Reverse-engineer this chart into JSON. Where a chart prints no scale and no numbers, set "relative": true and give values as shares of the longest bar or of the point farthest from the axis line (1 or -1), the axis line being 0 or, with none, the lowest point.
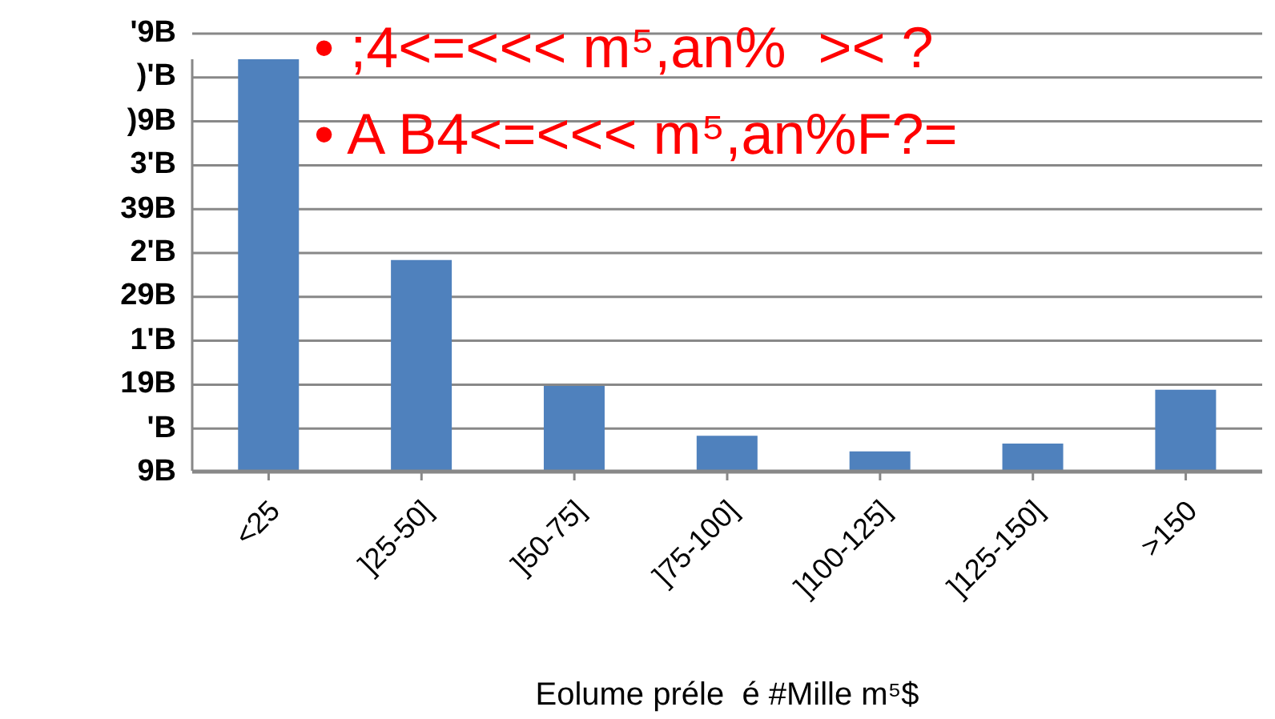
{
  "chart_data": {
    "type": "bar",
    "relative": true,
    "xlabel": "Eolume préle  é #Mille m⁵$",
    "annotations": [
      "• ;4<=<<< m⁵,an%  >< ?",
      "• A B4<=<<< m⁵,an%F?=",
      "'9B",
      ")'B",
      ")9B",
      "3'B",
      "39B",
      "2'B",
      "29B",
      "1'B",
      "19B",
      "'B",
      "9B"
    ],
    "categories": [
      "<25",
      "]25-50]",
      "]50-75]",
      "]75-100]",
      "]100-125]",
      "]125-150]",
      ">150"
    ],
    "values": [
      1,
      0.512,
      0.206,
      0.085,
      0.047,
      0.066,
      0.197
    ],
    "color": "#4f81bd",
    "grid": "y",
    "legend": false
  }
}
